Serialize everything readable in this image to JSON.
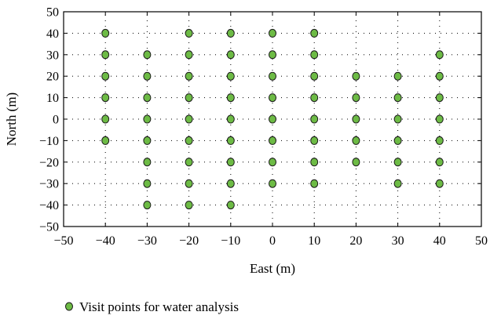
{
  "chart_data": {
    "type": "scatter",
    "xlabel": "East (m)",
    "ylabel": "North (m)",
    "xlim": [
      -50,
      50
    ],
    "ylim": [
      -50,
      50
    ],
    "xticks": [
      -50,
      -40,
      -30,
      -20,
      -10,
      0,
      10,
      20,
      30,
      40,
      50
    ],
    "yticks": [
      -50,
      -40,
      -30,
      -20,
      -10,
      0,
      10,
      20,
      30,
      40,
      50
    ],
    "grid": "dotted",
    "legend_position": "bottom-left",
    "marker_color": "#6dbb45",
    "series": [
      {
        "name": "Visit points for water analysis",
        "points": [
          [
            -40,
            40
          ],
          [
            -40,
            30
          ],
          [
            -40,
            20
          ],
          [
            -40,
            10
          ],
          [
            -40,
            0
          ],
          [
            -40,
            -10
          ],
          [
            -30,
            30
          ],
          [
            -30,
            20
          ],
          [
            -30,
            10
          ],
          [
            -30,
            0
          ],
          [
            -30,
            -10
          ],
          [
            -30,
            -20
          ],
          [
            -30,
            -30
          ],
          [
            -30,
            -40
          ],
          [
            -20,
            40
          ],
          [
            -20,
            30
          ],
          [
            -20,
            20
          ],
          [
            -20,
            10
          ],
          [
            -20,
            0
          ],
          [
            -20,
            -10
          ],
          [
            -20,
            -20
          ],
          [
            -20,
            -30
          ],
          [
            -20,
            -40
          ],
          [
            -10,
            40
          ],
          [
            -10,
            30
          ],
          [
            -10,
            20
          ],
          [
            -10,
            10
          ],
          [
            -10,
            0
          ],
          [
            -10,
            -10
          ],
          [
            -10,
            -20
          ],
          [
            -10,
            -30
          ],
          [
            -10,
            -40
          ],
          [
            0,
            40
          ],
          [
            0,
            30
          ],
          [
            0,
            20
          ],
          [
            0,
            10
          ],
          [
            0,
            0
          ],
          [
            0,
            -10
          ],
          [
            0,
            -20
          ],
          [
            0,
            -30
          ],
          [
            10,
            40
          ],
          [
            10,
            30
          ],
          [
            10,
            20
          ],
          [
            10,
            10
          ],
          [
            10,
            0
          ],
          [
            10,
            -10
          ],
          [
            10,
            -20
          ],
          [
            10,
            -30
          ],
          [
            20,
            20
          ],
          [
            20,
            10
          ],
          [
            20,
            0
          ],
          [
            20,
            -10
          ],
          [
            20,
            -20
          ],
          [
            30,
            20
          ],
          [
            30,
            10
          ],
          [
            30,
            0
          ],
          [
            30,
            -10
          ],
          [
            30,
            -20
          ],
          [
            30,
            -30
          ],
          [
            40,
            30
          ],
          [
            40,
            20
          ],
          [
            40,
            10
          ],
          [
            40,
            0
          ],
          [
            40,
            -10
          ],
          [
            40,
            -20
          ],
          [
            40,
            -30
          ]
        ]
      }
    ]
  }
}
